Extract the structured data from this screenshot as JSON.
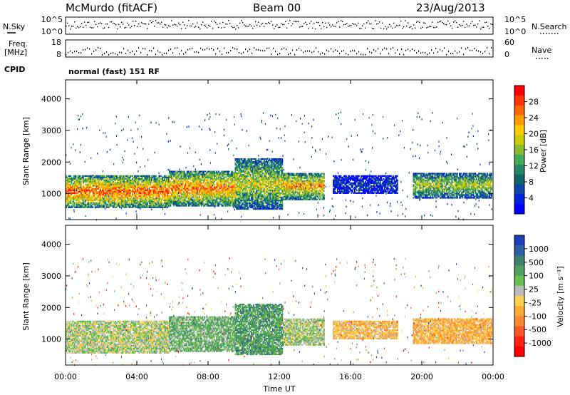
{
  "header": {
    "station": "McMurdo (fitACF)",
    "beam": "Beam 00",
    "date": "23/Aug/2013"
  },
  "status_panel": {
    "nsky_label": "N.Sky",
    "nsearch_label": "N.Search",
    "freq_label_line1": "Freq.",
    "freq_label_line2": "[MHz]",
    "nave_label": "Nave",
    "cpid_label": "CPID",
    "cpid_value": "normal (fast) 151 RF",
    "noise_axis_ticks": [
      "10^5",
      "10^0"
    ],
    "freq_axis_ticks": [
      "18",
      "8"
    ],
    "nave_axis_ticks": [
      "60",
      "0"
    ]
  },
  "chart_data": [
    {
      "type": "heatmap",
      "name": "power",
      "ylabel": "Slant Range [km]",
      "xlabel": "",
      "yticks": [
        1000,
        2000,
        3000,
        4000
      ],
      "ylim": [
        180,
        4600
      ],
      "xlim": [
        0,
        24
      ],
      "colorbar": {
        "label": "Power [dB]",
        "ticks": [
          "28",
          "24",
          "20",
          "16",
          "12",
          "8",
          "4"
        ],
        "colors": [
          "#ff0000",
          "#ff3300",
          "#ff6600",
          "#ff9900",
          "#ffcc00",
          "#cccc00",
          "#88bb33",
          "#44aa55",
          "#228866",
          "#116666",
          "#1144aa",
          "#0022dd",
          "#0000ff"
        ]
      },
      "echo_bands": [
        {
          "t_start": 0.0,
          "t_end": 5.8,
          "r_low": 550,
          "r_high": 1550,
          "intensity": 0.85
        },
        {
          "t_start": 5.8,
          "t_end": 9.5,
          "r_low": 600,
          "r_high": 1700,
          "intensity": 0.8
        },
        {
          "t_start": 9.5,
          "t_end": 12.2,
          "r_low": 500,
          "r_high": 2100,
          "intensity": 0.6
        },
        {
          "t_start": 12.2,
          "t_end": 14.5,
          "r_low": 800,
          "r_high": 1650,
          "intensity": 0.75
        },
        {
          "t_start": 15.0,
          "t_end": 18.6,
          "r_low": 1000,
          "r_high": 1550,
          "intensity": 0.15
        },
        {
          "t_start": 19.5,
          "t_end": 23.9,
          "r_low": 850,
          "r_high": 1650,
          "intensity": 0.55
        }
      ]
    },
    {
      "type": "heatmap",
      "name": "velocity",
      "ylabel": "Slant Range [km]",
      "xlabel": "Time UT",
      "yticks": [
        1000,
        2000,
        3000,
        4000
      ],
      "ylim": [
        180,
        4600
      ],
      "xlim": [
        0,
        24
      ],
      "xticks": [
        "00:00",
        "04:00",
        "08:00",
        "12:00",
        "16:00",
        "20:00",
        "00:00"
      ],
      "colorbar": {
        "label": "Velocity [m s⁻¹]",
        "ticks": [
          "1000",
          "500",
          "100",
          "25",
          "-25",
          "-100",
          "-500",
          "-1000"
        ],
        "colors": [
          "#1f3fbf",
          "#2e5fa8",
          "#3f7f6f",
          "#4f9f5f",
          "#66c24d",
          "#bbbbbb",
          "#ffd24d",
          "#ffaa33",
          "#ff8833",
          "#ff5522",
          "#ff2211",
          "#ff0000"
        ]
      },
      "echo_bands": [
        {
          "t_start": 0.0,
          "t_end": 5.8,
          "r_low": 550,
          "r_high": 1550,
          "velocity": 120
        },
        {
          "t_start": 5.8,
          "t_end": 9.5,
          "r_low": 600,
          "r_high": 1700,
          "velocity": 300
        },
        {
          "t_start": 9.5,
          "t_end": 12.2,
          "r_low": 500,
          "r_high": 2100,
          "velocity": 450
        },
        {
          "t_start": 12.2,
          "t_end": 14.5,
          "r_low": 800,
          "r_high": 1650,
          "velocity": 150
        },
        {
          "t_start": 15.0,
          "t_end": 18.6,
          "r_low": 1000,
          "r_high": 1550,
          "velocity": -150
        },
        {
          "t_start": 19.5,
          "t_end": 23.9,
          "r_low": 850,
          "r_high": 1650,
          "velocity": -200
        }
      ]
    }
  ]
}
